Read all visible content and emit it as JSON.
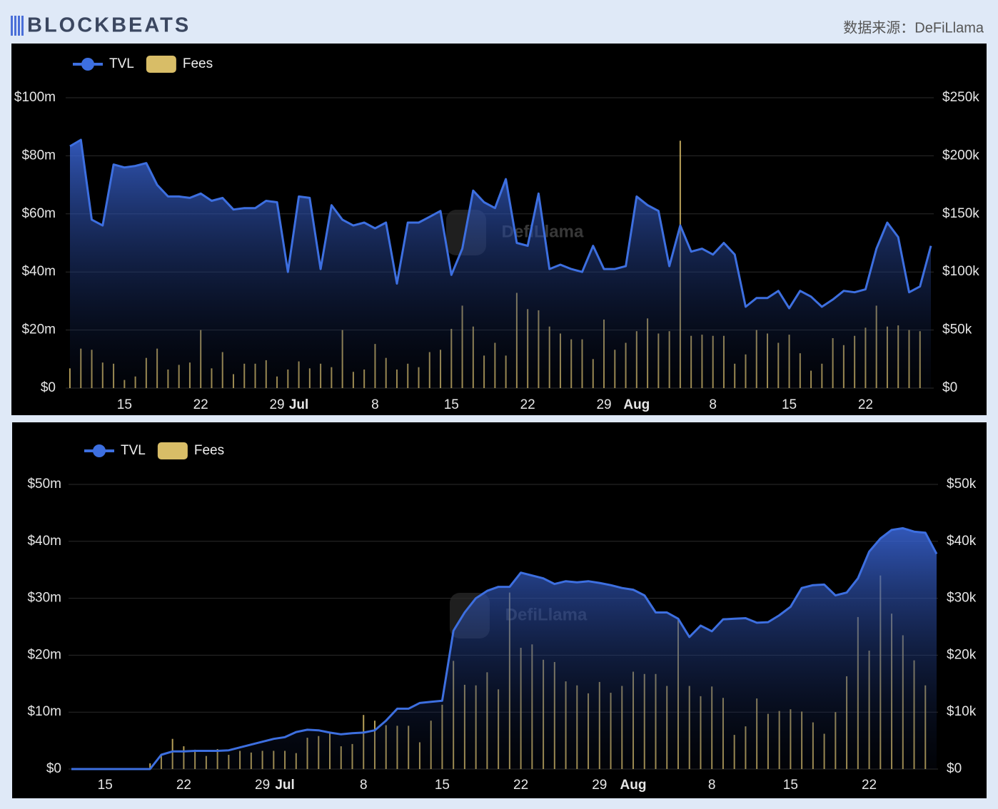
{
  "header": {
    "logo": "BLOCKBEATS",
    "source": "数据来源：DeFiLlama"
  },
  "chart_data": [
    {
      "type": "combo",
      "watermark": "DefiLlama",
      "grid": true,
      "legend": "top-left",
      "categories": [
        null,
        null,
        null,
        null,
        null,
        "15",
        null,
        null,
        null,
        null,
        null,
        null,
        "22",
        null,
        null,
        null,
        null,
        null,
        null,
        "29",
        null,
        "Jul",
        null,
        null,
        null,
        null,
        null,
        null,
        "8",
        null,
        null,
        null,
        null,
        null,
        null,
        "15",
        null,
        null,
        null,
        null,
        null,
        null,
        "22",
        null,
        null,
        null,
        null,
        null,
        null,
        "29",
        null,
        null,
        "Aug",
        null,
        null,
        null,
        null,
        null,
        null,
        "8",
        null,
        null,
        null,
        null,
        null,
        null,
        "15",
        null,
        null,
        null,
        null,
        null,
        null,
        "22",
        null,
        null,
        null,
        null,
        null,
        null
      ],
      "ylim": [
        0,
        100000000
      ],
      "yticks": [
        {
          "value": 0,
          "label": "$0"
        },
        {
          "value": 20000000,
          "label": "$20m"
        },
        {
          "value": 40000000,
          "label": "$40m"
        },
        {
          "value": 60000000,
          "label": "$60m"
        },
        {
          "value": 80000000,
          "label": "$80m"
        },
        {
          "value": 100000000,
          "label": "$100m"
        }
      ],
      "y2lim": [
        0,
        250000
      ],
      "y2ticks": [
        {
          "value": 0,
          "label": "$0"
        },
        {
          "value": 50000,
          "label": "$50k"
        },
        {
          "value": 100000,
          "label": "$100k"
        },
        {
          "value": 150000,
          "label": "$150k"
        },
        {
          "value": 200000,
          "label": "$200k"
        },
        {
          "value": 250000,
          "label": "$250k"
        }
      ],
      "series": [
        {
          "name": "TVL",
          "color": "#3d6fe0",
          "kind": "line",
          "axis": "y",
          "values": [
            83300000,
            85500000,
            58000000,
            56000000,
            77000000,
            76000000,
            76500000,
            77500000,
            70000000,
            66000000,
            66000000,
            65500000,
            67000000,
            64500000,
            65500000,
            61500000,
            62000000,
            62000000,
            64500000,
            64000000,
            40000000,
            66000000,
            65500000,
            41000000,
            63000000,
            58000000,
            56000000,
            57000000,
            55000000,
            57000000,
            36000000,
            57000000,
            57000000,
            59000000,
            61000000,
            39000000,
            48000000,
            68000000,
            64000000,
            62000000,
            72000000,
            50000000,
            49000000,
            67000000,
            41000000,
            42500000,
            41000000,
            40000000,
            49000000,
            41000000,
            41000000,
            42000000,
            66000000,
            63000000,
            61000000,
            42000000,
            56000000,
            47000000,
            48000000,
            46000000,
            50000000,
            46000000,
            28000000,
            31000000,
            31000000,
            33500000,
            27500000,
            33500000,
            31500000,
            28000000,
            30500000,
            33500000,
            33000000,
            34000000,
            48000000,
            57000000,
            52000000,
            33000000,
            35000000,
            49000000
          ]
        },
        {
          "name": "Fees",
          "color": "#d8bd67",
          "kind": "bar",
          "axis": "y2",
          "values": [
            17000,
            34000,
            33000,
            22000,
            21000,
            7000,
            10000,
            26000,
            34000,
            16000,
            20000,
            22000,
            50000,
            17000,
            31000,
            12000,
            21000,
            21000,
            24000,
            10000,
            16000,
            23000,
            17000,
            21000,
            18000,
            50000,
            14000,
            16000,
            38000,
            26000,
            16000,
            21000,
            18000,
            31000,
            33000,
            51000,
            71000,
            53000,
            28000,
            39000,
            28000,
            82000,
            68000,
            67000,
            53000,
            47000,
            42000,
            42000,
            25000,
            59000,
            33000,
            39000,
            49000,
            60000,
            47000,
            49000,
            213000,
            45000,
            46000,
            45000,
            45000,
            21000,
            29000,
            50000,
            47000,
            39000,
            46000,
            30000,
            15000,
            21000,
            43000,
            37000,
            45000,
            52000,
            71000,
            53000,
            54000,
            50000,
            49000,
            null
          ]
        }
      ]
    },
    {
      "type": "combo",
      "watermark": "DefiLlama",
      "grid": true,
      "legend": "top-left",
      "categories": [
        null,
        null,
        null,
        "15",
        null,
        null,
        null,
        null,
        null,
        null,
        "22",
        null,
        null,
        null,
        null,
        null,
        null,
        "29",
        null,
        "Jul",
        null,
        null,
        null,
        null,
        null,
        null,
        "8",
        null,
        null,
        null,
        null,
        null,
        null,
        "15",
        null,
        null,
        null,
        null,
        null,
        null,
        "22",
        null,
        null,
        null,
        null,
        null,
        null,
        "29",
        null,
        null,
        "Aug",
        null,
        null,
        null,
        null,
        null,
        null,
        "8",
        null,
        null,
        null,
        null,
        null,
        null,
        "15",
        null,
        null,
        null,
        null,
        null,
        null,
        "22",
        null,
        null,
        null,
        null,
        null,
        null
      ],
      "ylim": [
        0,
        50000000
      ],
      "yticks": [
        {
          "value": 0,
          "label": "$0"
        },
        {
          "value": 10000000,
          "label": "$10m"
        },
        {
          "value": 20000000,
          "label": "$20m"
        },
        {
          "value": 30000000,
          "label": "$30m"
        },
        {
          "value": 40000000,
          "label": "$40m"
        },
        {
          "value": 50000000,
          "label": "$50m"
        }
      ],
      "y2lim": [
        0,
        50000
      ],
      "y2ticks": [
        {
          "value": 0,
          "label": "$0"
        },
        {
          "value": 10000,
          "label": "$10k"
        },
        {
          "value": 20000,
          "label": "$20k"
        },
        {
          "value": 30000,
          "label": "$30k"
        },
        {
          "value": 40000,
          "label": "$40k"
        },
        {
          "value": 50000,
          "label": "$50k"
        }
      ],
      "series": [
        {
          "name": "TVL",
          "color": "#3d6fe0",
          "kind": "line",
          "axis": "y",
          "values": [
            0,
            0,
            0,
            0,
            0,
            0,
            0,
            0,
            2500000,
            3100000,
            3100000,
            3200000,
            3200000,
            3200000,
            3300000,
            3800000,
            4300000,
            4800000,
            5300000,
            5600000,
            6500000,
            6900000,
            6800000,
            6400000,
            6100000,
            6300000,
            6400000,
            6800000,
            8500000,
            10600000,
            10600000,
            11600000,
            11800000,
            12000000,
            24300000,
            27500000,
            30000000,
            31300000,
            32000000,
            32000000,
            34500000,
            34000000,
            33500000,
            32500000,
            33000000,
            32800000,
            33000000,
            32700000,
            32300000,
            31800000,
            31500000,
            30500000,
            27500000,
            27500000,
            26400000,
            23200000,
            25200000,
            24200000,
            26300000,
            26400000,
            26500000,
            25700000,
            25800000,
            27000000,
            28500000,
            31800000,
            32300000,
            32400000,
            30500000,
            31000000,
            33500000,
            38200000,
            40500000,
            42000000,
            42300000,
            41700000,
            41500000,
            37800000
          ]
        },
        {
          "name": "Fees",
          "color": "#d8bd67",
          "kind": "bar",
          "axis": "y2",
          "values": [
            null,
            null,
            null,
            null,
            null,
            null,
            null,
            1000,
            2500,
            5300,
            4000,
            3400,
            2300,
            3500,
            2500,
            3200,
            2900,
            3200,
            3200,
            3200,
            2800,
            5500,
            5800,
            6400,
            4000,
            4400,
            9500,
            8500,
            7700,
            7600,
            7600,
            4700,
            8500,
            11300,
            19000,
            14800,
            14700,
            17000,
            14000,
            31000,
            21300,
            21900,
            19200,
            18800,
            15400,
            14700,
            13300,
            15300,
            13400,
            14600,
            17100,
            16700,
            16700,
            14600,
            26400,
            14600,
            12800,
            14500,
            12500,
            6000,
            7500,
            12400,
            9700,
            10200,
            10500,
            10100,
            8200,
            6200,
            10000,
            16300,
            26700,
            20800,
            34000,
            27300,
            23500,
            19100,
            14700,
            null
          ]
        }
      ]
    }
  ]
}
